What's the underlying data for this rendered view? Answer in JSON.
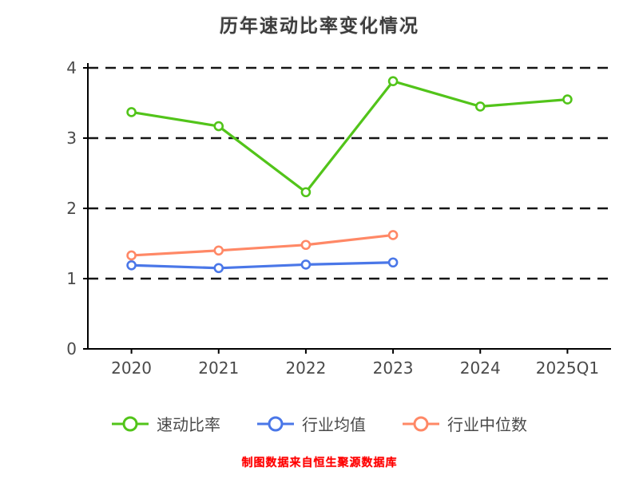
{
  "chart_data": {
    "type": "line",
    "title": "历年速动比率变化情况",
    "categories": [
      "2020",
      "2021",
      "2022",
      "2023",
      "2024",
      "2025Q1"
    ],
    "series": [
      {
        "name": "速动比率",
        "color": "#52c41a",
        "values": [
          3.37,
          3.17,
          2.23,
          3.81,
          3.45,
          3.55
        ]
      },
      {
        "name": "行业均值",
        "color": "#4a77e8",
        "values": [
          1.19,
          1.15,
          1.2,
          1.23,
          null,
          null
        ]
      },
      {
        "name": "行业中位数",
        "color": "#ff8866",
        "values": [
          1.33,
          1.4,
          1.48,
          1.62,
          null,
          null
        ]
      }
    ],
    "xlabel": "",
    "ylabel": "",
    "ylim": [
      0,
      4
    ],
    "yticks": [
      0,
      1,
      2,
      3,
      4
    ],
    "grid": "horizontal-dashed",
    "grid_color": "#151515",
    "axis_color": "#000000",
    "legend_position": "bottom",
    "marker": "circle-open"
  },
  "footer": {
    "text": "制图数据来自恒生聚源数据库",
    "color": "#ff0000"
  }
}
